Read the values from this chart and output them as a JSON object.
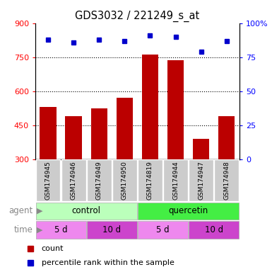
{
  "title": "GDS3032 / 221249_s_at",
  "samples": [
    "GSM174945",
    "GSM174946",
    "GSM174949",
    "GSM174950",
    "GSM174819",
    "GSM174944",
    "GSM174947",
    "GSM174948"
  ],
  "counts": [
    530,
    490,
    525,
    570,
    760,
    735,
    390,
    490
  ],
  "percentiles": [
    88,
    86,
    88,
    87,
    91,
    90,
    79,
    87
  ],
  "ymin": 300,
  "ymax": 900,
  "yticks": [
    300,
    450,
    600,
    750,
    900
  ],
  "y2ticks": [
    0,
    25,
    50,
    75,
    100
  ],
  "bar_color": "#bb0000",
  "dot_color": "#0000cc",
  "sample_bg_color": "#cccccc",
  "agent_groups": [
    {
      "label": "control",
      "start": 0,
      "end": 4,
      "color": "#bbffbb"
    },
    {
      "label": "quercetin",
      "start": 4,
      "end": 8,
      "color": "#44ee44"
    }
  ],
  "time_groups": [
    {
      "label": "5 d",
      "start": 0,
      "end": 2,
      "color": "#ee88ee"
    },
    {
      "label": "10 d",
      "start": 2,
      "end": 4,
      "color": "#cc44cc"
    },
    {
      "label": "5 d",
      "start": 4,
      "end": 6,
      "color": "#ee88ee"
    },
    {
      "label": "10 d",
      "start": 6,
      "end": 8,
      "color": "#cc44cc"
    }
  ],
  "figsize": [
    3.85,
    3.84
  ],
  "dpi": 100
}
